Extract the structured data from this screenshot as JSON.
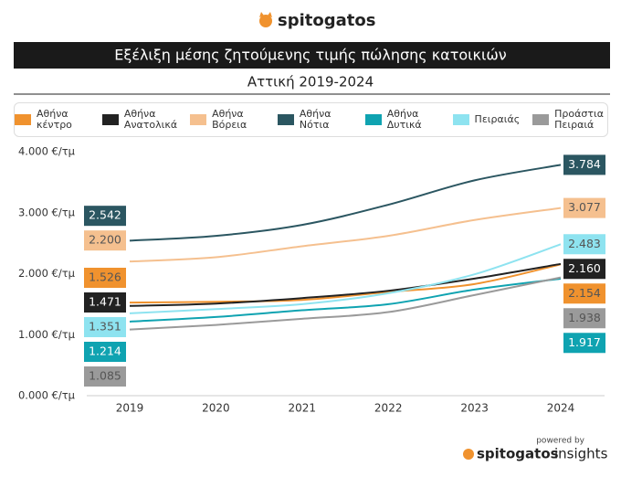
{
  "brand": "spitogatos",
  "footer": {
    "powered": "powered by",
    "brand": "spitogatos",
    "suffix": "insights"
  },
  "chart_data": {
    "type": "line",
    "title": "Εξέλιξη μέσης ζητούμενης τιμής πώλησης κατοικιών",
    "subtitle": "Αττική 2019-2024",
    "categories": [
      "2019",
      "2020",
      "2021",
      "2022",
      "2023",
      "2024"
    ],
    "ylim": [
      0,
      4000
    ],
    "yticks": [
      {
        "value": 0,
        "label": "0.000 €/τμ"
      },
      {
        "value": 1000,
        "label": "1.000 €/τμ"
      },
      {
        "value": 2000,
        "label": "2.000 €/τμ"
      },
      {
        "value": 3000,
        "label": "3.000 €/τμ"
      },
      {
        "value": 4000,
        "label": "4.000 €/τμ"
      }
    ],
    "grid": false,
    "legend": "top",
    "series": [
      {
        "name": "Αθήνα κέντρο",
        "color": "#f0922e",
        "values": [
          1526,
          1540,
          1570,
          1700,
          1830,
          2154
        ],
        "value_labels": [
          "1.526",
          null,
          null,
          null,
          null,
          "2.154"
        ]
      },
      {
        "name": "Αθήνα Ανατολικά",
        "color": "#222222",
        "values": [
          1471,
          1510,
          1600,
          1720,
          1920,
          2160
        ],
        "value_labels": [
          "1.471",
          null,
          null,
          null,
          null,
          "2.160"
        ]
      },
      {
        "name": "Αθήνα Βόρεια",
        "color": "#f5c08f",
        "values": [
          2200,
          2270,
          2450,
          2620,
          2880,
          3077
        ],
        "value_labels": [
          "2.200",
          null,
          null,
          null,
          null,
          "3.077"
        ]
      },
      {
        "name": "Αθήνα Νότια",
        "color": "#2b5661",
        "values": [
          2542,
          2620,
          2800,
          3130,
          3530,
          3784
        ],
        "value_labels": [
          "2.542",
          null,
          null,
          null,
          null,
          "3.784"
        ]
      },
      {
        "name": "Αθήνα Δυτικά",
        "color": "#0fa3b1",
        "values": [
          1214,
          1290,
          1400,
          1500,
          1740,
          1917
        ],
        "value_labels": [
          "1.214",
          null,
          null,
          null,
          null,
          "1.917"
        ]
      },
      {
        "name": "Πειραιάς",
        "color": "#8ee3f0",
        "values": [
          1351,
          1420,
          1500,
          1680,
          1990,
          2483
        ],
        "value_labels": [
          "1.351",
          null,
          null,
          null,
          null,
          "2.483"
        ]
      },
      {
        "name": "Προάστια Πειραιά",
        "color": "#9a9a9a",
        "values": [
          1085,
          1160,
          1260,
          1370,
          1650,
          1938
        ],
        "value_labels": [
          "1.085",
          null,
          null,
          null,
          null,
          "1.938"
        ]
      }
    ]
  }
}
